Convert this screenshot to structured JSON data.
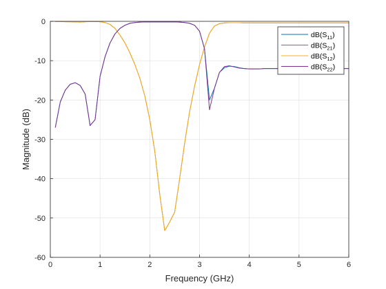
{
  "chart_data": {
    "type": "line",
    "xlabel": "Frequency (GHz)",
    "ylabel": "Magnitude (dB)",
    "xlim": [
      0,
      6
    ],
    "ylim": [
      -60,
      0
    ],
    "xticks": [
      "0",
      "1",
      "2",
      "3",
      "4",
      "5",
      "6"
    ],
    "yticks": [
      "0",
      "-10",
      "-20",
      "-30",
      "-40",
      "-50",
      "-60"
    ],
    "grid": true,
    "legend_position": "top-right",
    "series": [
      {
        "base": "dB(S",
        "sub": "11",
        "close": ")",
        "color": "#0072BD",
        "x": [
          0.1,
          0.2,
          0.3,
          0.4,
          0.5,
          0.6,
          0.7,
          0.8,
          0.9,
          1.0,
          1.1,
          1.2,
          1.3,
          1.4,
          1.5,
          1.6,
          1.7,
          1.8,
          1.9,
          2.0,
          2.1,
          2.2,
          2.3,
          2.4,
          2.5,
          2.6,
          2.7,
          2.8,
          2.9,
          3.0,
          3.1,
          3.2,
          3.3,
          3.4,
          3.5,
          3.6,
          3.7,
          3.8,
          3.9,
          4.0,
          4.1,
          4.2,
          4.3,
          4.4,
          4.5,
          4.6,
          4.7,
          4.8,
          4.9,
          5.0,
          5.1,
          5.2,
          5.3,
          5.4,
          5.5,
          5.6,
          5.7,
          5.8,
          5.9,
          6.0
        ],
        "values": [
          -27.0,
          -20.5,
          -17.5,
          -16.0,
          -15.6,
          -16.3,
          -18.5,
          -26.5,
          -25.0,
          -14.0,
          -9.0,
          -5.5,
          -3.2,
          -1.8,
          -1.0,
          -0.5,
          -0.3,
          -0.2,
          -0.15,
          -0.15,
          -0.15,
          -0.15,
          -0.15,
          -0.15,
          -0.15,
          -0.2,
          -0.3,
          -0.5,
          -1.0,
          -2.5,
          -7.0,
          -20.0,
          -17.0,
          -13.0,
          -11.8,
          -11.4,
          -11.5,
          -11.8,
          -12.0,
          -12.1,
          -12.1,
          -12.1,
          -12.0,
          -12.0,
          -12.0,
          -12.0,
          -12.0,
          -12.0,
          -12.0,
          -12.0,
          -12.0,
          -12.0,
          -12.0,
          -12.0,
          -12.0,
          -12.0,
          -12.0,
          -12.0,
          -12.0,
          -12.0
        ]
      },
      {
        "base": "dB(S",
        "sub": "21",
        "close": ")",
        "color": "#D95319",
        "x": [
          0.1,
          0.2,
          0.3,
          0.4,
          0.5,
          0.6,
          0.7,
          0.8,
          0.9,
          1.0,
          1.1,
          1.2,
          1.3,
          1.4,
          1.5,
          1.6,
          1.7,
          1.8,
          1.9,
          2.0,
          2.1,
          2.2,
          2.3,
          2.4,
          2.5,
          2.6,
          2.7,
          2.8,
          2.9,
          3.0,
          3.1,
          3.2,
          3.3,
          3.4,
          3.5,
          3.6,
          3.7,
          3.8,
          3.9,
          4.0,
          4.1,
          4.2,
          4.3,
          4.4,
          4.5,
          4.6,
          4.7,
          4.8,
          4.9,
          5.0,
          5.1,
          5.2,
          5.3,
          5.4,
          5.5,
          5.6,
          5.7,
          5.8,
          5.9,
          6.0
        ],
        "values": [
          -0.05,
          -0.05,
          -0.1,
          -0.1,
          -0.15,
          -0.2,
          -0.1,
          -0.05,
          -0.05,
          -0.1,
          -0.3,
          -0.8,
          -1.8,
          -3.5,
          -5.5,
          -8.0,
          -11.0,
          -14.5,
          -19.0,
          -25.0,
          -33.0,
          -44.0,
          -53.2,
          -51.0,
          -48.5,
          -40.0,
          -31.0,
          -23.0,
          -16.5,
          -11.0,
          -6.5,
          -3.0,
          -1.2,
          -0.6,
          -0.4,
          -0.35,
          -0.35,
          -0.35,
          -0.4,
          -0.4,
          -0.4,
          -0.4,
          -0.4,
          -0.4,
          -0.4,
          -0.4,
          -0.4,
          -0.4,
          -0.4,
          -0.4,
          -0.4,
          -0.4,
          -0.4,
          -0.4,
          -0.4,
          -0.4,
          -0.4,
          -0.4,
          -0.4,
          -0.4
        ]
      },
      {
        "base": "dB(S",
        "sub": "12",
        "close": ")",
        "color": "#EDB120",
        "x": [
          0.1,
          0.2,
          0.3,
          0.4,
          0.5,
          0.6,
          0.7,
          0.8,
          0.9,
          1.0,
          1.1,
          1.2,
          1.3,
          1.4,
          1.5,
          1.6,
          1.7,
          1.8,
          1.9,
          2.0,
          2.1,
          2.2,
          2.3,
          2.4,
          2.5,
          2.6,
          2.7,
          2.8,
          2.9,
          3.0,
          3.1,
          3.2,
          3.3,
          3.4,
          3.5,
          3.6,
          3.7,
          3.8,
          3.9,
          4.0,
          4.1,
          4.2,
          4.3,
          4.4,
          4.5,
          4.6,
          4.7,
          4.8,
          4.9,
          5.0,
          5.1,
          5.2,
          5.3,
          5.4,
          5.5,
          5.6,
          5.7,
          5.8,
          5.9,
          6.0
        ],
        "values": [
          -0.05,
          -0.05,
          -0.1,
          -0.1,
          -0.15,
          -0.2,
          -0.1,
          -0.05,
          -0.05,
          -0.1,
          -0.3,
          -0.8,
          -1.8,
          -3.5,
          -5.5,
          -8.0,
          -11.0,
          -14.5,
          -19.0,
          -25.0,
          -33.0,
          -44.0,
          -53.2,
          -51.0,
          -48.5,
          -40.0,
          -31.0,
          -23.0,
          -16.5,
          -11.0,
          -6.5,
          -3.0,
          -1.2,
          -0.6,
          -0.4,
          -0.35,
          -0.35,
          -0.35,
          -0.4,
          -0.4,
          -0.4,
          -0.4,
          -0.4,
          -0.4,
          -0.4,
          -0.4,
          -0.4,
          -0.4,
          -0.4,
          -0.4,
          -0.4,
          -0.4,
          -0.4,
          -0.4,
          -0.4,
          -0.4,
          -0.4,
          -0.4,
          -0.4,
          -0.4
        ]
      },
      {
        "base": "dB(S",
        "sub": "22",
        "close": ")",
        "color": "#7E2F8E",
        "x": [
          0.1,
          0.2,
          0.3,
          0.4,
          0.5,
          0.6,
          0.7,
          0.8,
          0.9,
          1.0,
          1.1,
          1.2,
          1.3,
          1.4,
          1.5,
          1.6,
          1.7,
          1.8,
          1.9,
          2.0,
          2.1,
          2.2,
          2.3,
          2.4,
          2.5,
          2.6,
          2.7,
          2.8,
          2.9,
          3.0,
          3.1,
          3.2,
          3.3,
          3.4,
          3.5,
          3.6,
          3.7,
          3.8,
          3.9,
          4.0,
          4.1,
          4.2,
          4.3,
          4.4,
          4.5,
          4.6,
          4.7,
          4.8,
          4.9,
          5.0,
          5.1,
          5.2,
          5.3,
          5.4,
          5.5,
          5.6,
          5.7,
          5.8,
          5.9,
          6.0
        ],
        "values": [
          -27.0,
          -20.5,
          -17.5,
          -16.0,
          -15.6,
          -16.3,
          -18.5,
          -26.5,
          -25.0,
          -14.0,
          -9.0,
          -5.5,
          -3.2,
          -1.8,
          -1.0,
          -0.5,
          -0.3,
          -0.2,
          -0.15,
          -0.15,
          -0.15,
          -0.15,
          -0.15,
          -0.15,
          -0.15,
          -0.2,
          -0.3,
          -0.5,
          -1.0,
          -2.5,
          -7.0,
          -22.5,
          -17.0,
          -13.0,
          -11.5,
          -11.3,
          -11.6,
          -11.9,
          -12.0,
          -12.1,
          -12.1,
          -12.1,
          -12.0,
          -12.0,
          -12.0,
          -12.0,
          -12.0,
          -12.0,
          -12.0,
          -12.0,
          -12.0,
          -12.0,
          -12.0,
          -12.0,
          -12.0,
          -12.0,
          -12.0,
          -12.0,
          -12.0,
          -12.0
        ]
      }
    ]
  }
}
